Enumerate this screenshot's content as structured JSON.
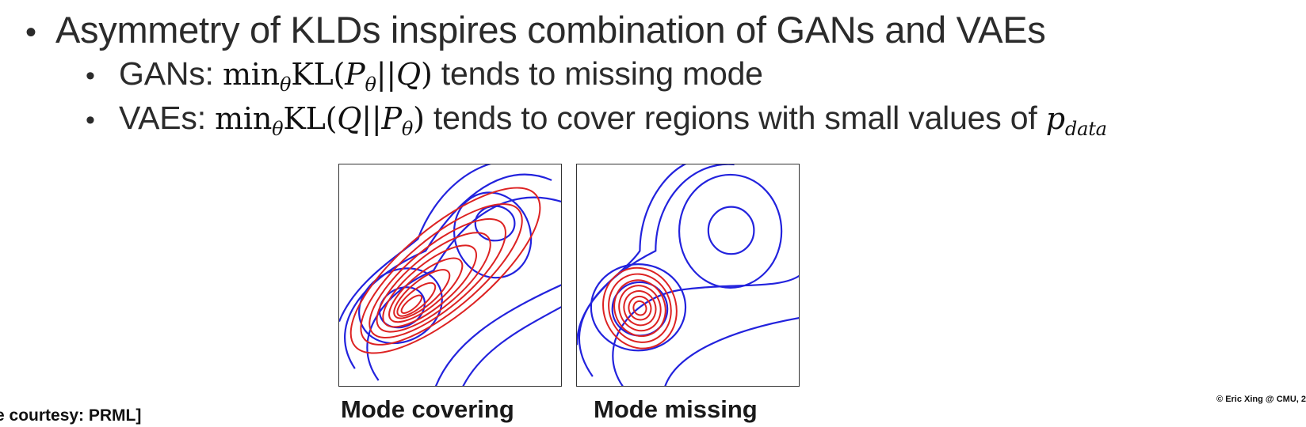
{
  "bullets": {
    "main": "Asymmetry of KLDs inspires combination of GANs and VAEs",
    "gans": {
      "label": "GANs:",
      "formula": "min",
      "formula_sub": "θ",
      "formula_rest_a": "KL(",
      "formula_p": "P",
      "formula_p_sub": "θ",
      "formula_mid": "||",
      "formula_q": "Q",
      "formula_end": ")",
      "text": "tends to missing mode"
    },
    "vaes": {
      "label": "VAEs:",
      "formula": "min",
      "formula_sub": "θ",
      "formula_rest_a": "KL(",
      "formula_q": "Q",
      "formula_mid": "||",
      "formula_p": "P",
      "formula_p_sub": "θ",
      "formula_end": ")",
      "text": "tends to cover regions with small values of",
      "pvar": "p",
      "pvar_sub": "data"
    }
  },
  "figures": {
    "left_caption": "Mode covering",
    "right_caption": "Mode missing"
  },
  "credit": "e courtesy: PRML]",
  "copyright": "© Eric Xing @ CMU, 2",
  "colors": {
    "blue": "#2222dd",
    "red": "#dd2222"
  }
}
